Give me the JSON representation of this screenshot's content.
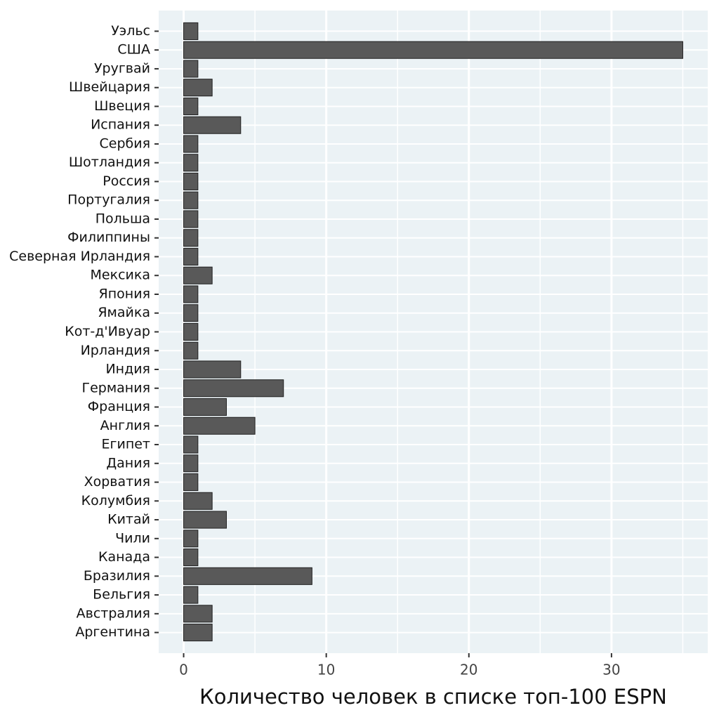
{
  "chart_data": {
    "type": "barh",
    "x_label": "Количество человек в списке топ-100 ESPN",
    "categories": [
      "Уэльс",
      "США",
      "Уругвай",
      "Швейцария",
      "Швеция",
      "Испания",
      "Сербия",
      "Шотландия",
      "Россия",
      "Португалия",
      "Польша",
      "Филиппины",
      "Северная Ирландия",
      "Мексика",
      "Япония",
      "Ямайка",
      "Кот-д'Ивуар",
      "Ирландия",
      "Индия",
      "Германия",
      "Франция",
      "Англия",
      "Египет",
      "Дания",
      "Хорватия",
      "Колумбия",
      "Китай",
      "Чили",
      "Канада",
      "Бразилия",
      "Бельгия",
      "Австралия",
      "Аргентина"
    ],
    "values": [
      1,
      35,
      1,
      2,
      1,
      4,
      1,
      1,
      1,
      1,
      1,
      1,
      1,
      2,
      1,
      1,
      1,
      1,
      4,
      7,
      3,
      5,
      1,
      1,
      1,
      2,
      3,
      1,
      1,
      9,
      1,
      2,
      2
    ],
    "color": "#595959",
    "xlim": [
      -1.75,
      36.75
    ],
    "xticks": [
      0,
      10,
      20,
      30
    ],
    "minor_xticks": [
      5,
      15,
      25,
      35
    ],
    "grid": true
  }
}
